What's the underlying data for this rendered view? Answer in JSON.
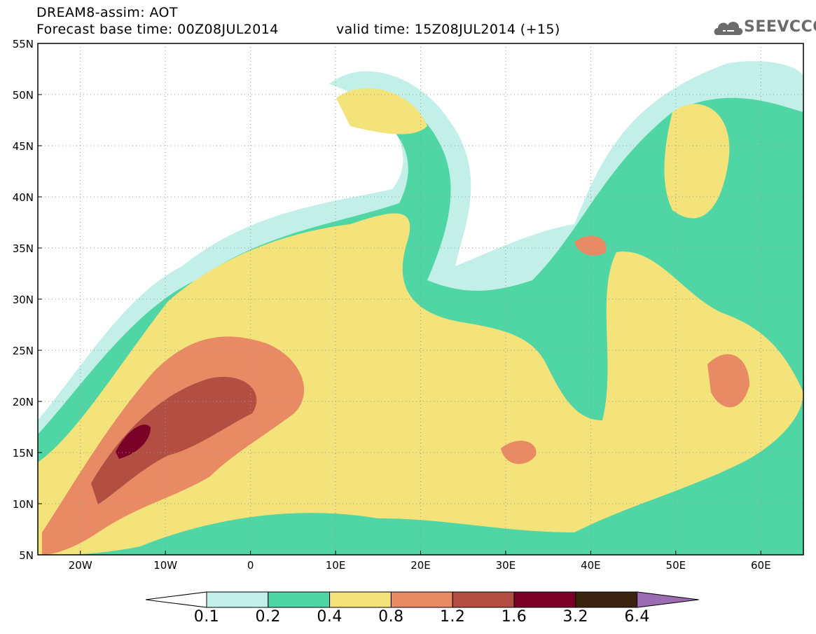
{
  "header": {
    "title": "DREAM8-assim: AOT",
    "base_time": "Forecast base time: 00Z08JUL2014",
    "valid_time": "valid time: 15Z08JUL2014 (+15)"
  },
  "logo": {
    "text": "SEEVCCC",
    "icon": "cloud-icon"
  },
  "map": {
    "lat_labels": [
      "55N",
      "50N",
      "45N",
      "40N",
      "35N",
      "30N",
      "25N",
      "20N",
      "15N",
      "10N",
      "5N"
    ],
    "lon_labels": [
      "20W",
      "10W",
      "0",
      "10E",
      "20E",
      "30E",
      "40E",
      "50E",
      "60E"
    ],
    "lon_range": [
      -25,
      65
    ],
    "lat_range": [
      5,
      55
    ],
    "grid": true
  },
  "colorbar": {
    "levels": [
      "0.1",
      "0.2",
      "0.4",
      "0.8",
      "1.2",
      "1.6",
      "3.2",
      "6.4"
    ],
    "colors": [
      "#ffffff",
      "#c2efe8",
      "#4fd6a4",
      "#f4e37a",
      "#e88a64",
      "#b24e42",
      "#7a0027",
      "#3a2410",
      "#9c6cb2"
    ]
  }
}
